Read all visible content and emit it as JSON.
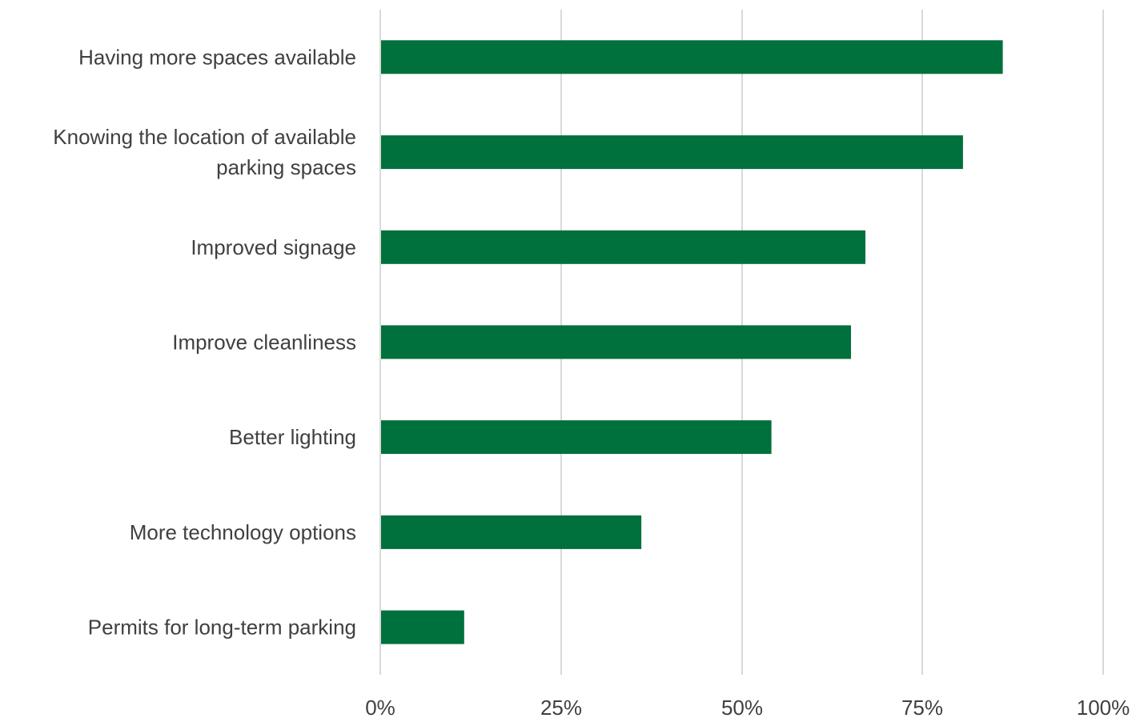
{
  "chart_data": {
    "type": "bar",
    "orientation": "horizontal",
    "title": "",
    "xlabel": "",
    "ylabel": "",
    "categories": [
      "Having more spaces available",
      "Knowing the location of available parking spaces",
      "Improved signage",
      "Improve cleanliness",
      "Better lighting",
      "More technology options",
      "Permits for long-term parking"
    ],
    "category_lines": [
      [
        "Having more spaces available"
      ],
      [
        "Knowing the location of available",
        "parking spaces"
      ],
      [
        "Improved signage"
      ],
      [
        "Improve cleanliness"
      ],
      [
        "Better lighting"
      ],
      [
        "More technology options"
      ],
      [
        "Permits for long-term parking"
      ]
    ],
    "values": [
      86,
      80.5,
      67,
      65,
      54,
      36,
      11.5
    ],
    "xlim": [
      0,
      100
    ],
    "x_ticks": [
      0,
      25,
      50,
      75,
      100
    ],
    "x_tick_labels": [
      "0%",
      "25%",
      "50%",
      "75%",
      "100%"
    ],
    "bar_color": "#00703C",
    "grid": true,
    "legend": "none"
  }
}
